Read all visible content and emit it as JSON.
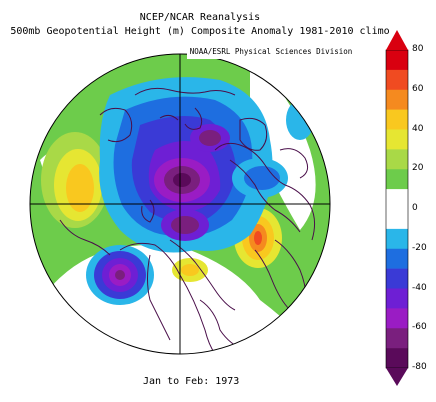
{
  "title_line1": "NCEP/NCAR Reanalysis",
  "title_line2": "500mb Geopotential Height (m) Composite Anomaly 1981-2010 climo",
  "badge": "NOAA/ESRL Physical Sciences Division",
  "footer": "Jan to Feb: 1973",
  "colorbar": {
    "ticks": [
      "80",
      "60",
      "40",
      "20",
      "0",
      "-20",
      "-40",
      "-60",
      "-80"
    ],
    "colors": [
      "#d90010",
      "#f04b21",
      "#f58a1f",
      "#f9c81f",
      "#e6e632",
      "#a9d947",
      "#6dcc4b",
      "#ffffff",
      "#ffffff",
      "#2ab6e9",
      "#1e6ee0",
      "#3a3ad6",
      "#6e1fd4",
      "#9a1cc4",
      "#7a1f7e",
      "#5a0a5a"
    ]
  },
  "map": {
    "projection": "north-polar-stereographic",
    "land": "coastline-outlines"
  }
}
